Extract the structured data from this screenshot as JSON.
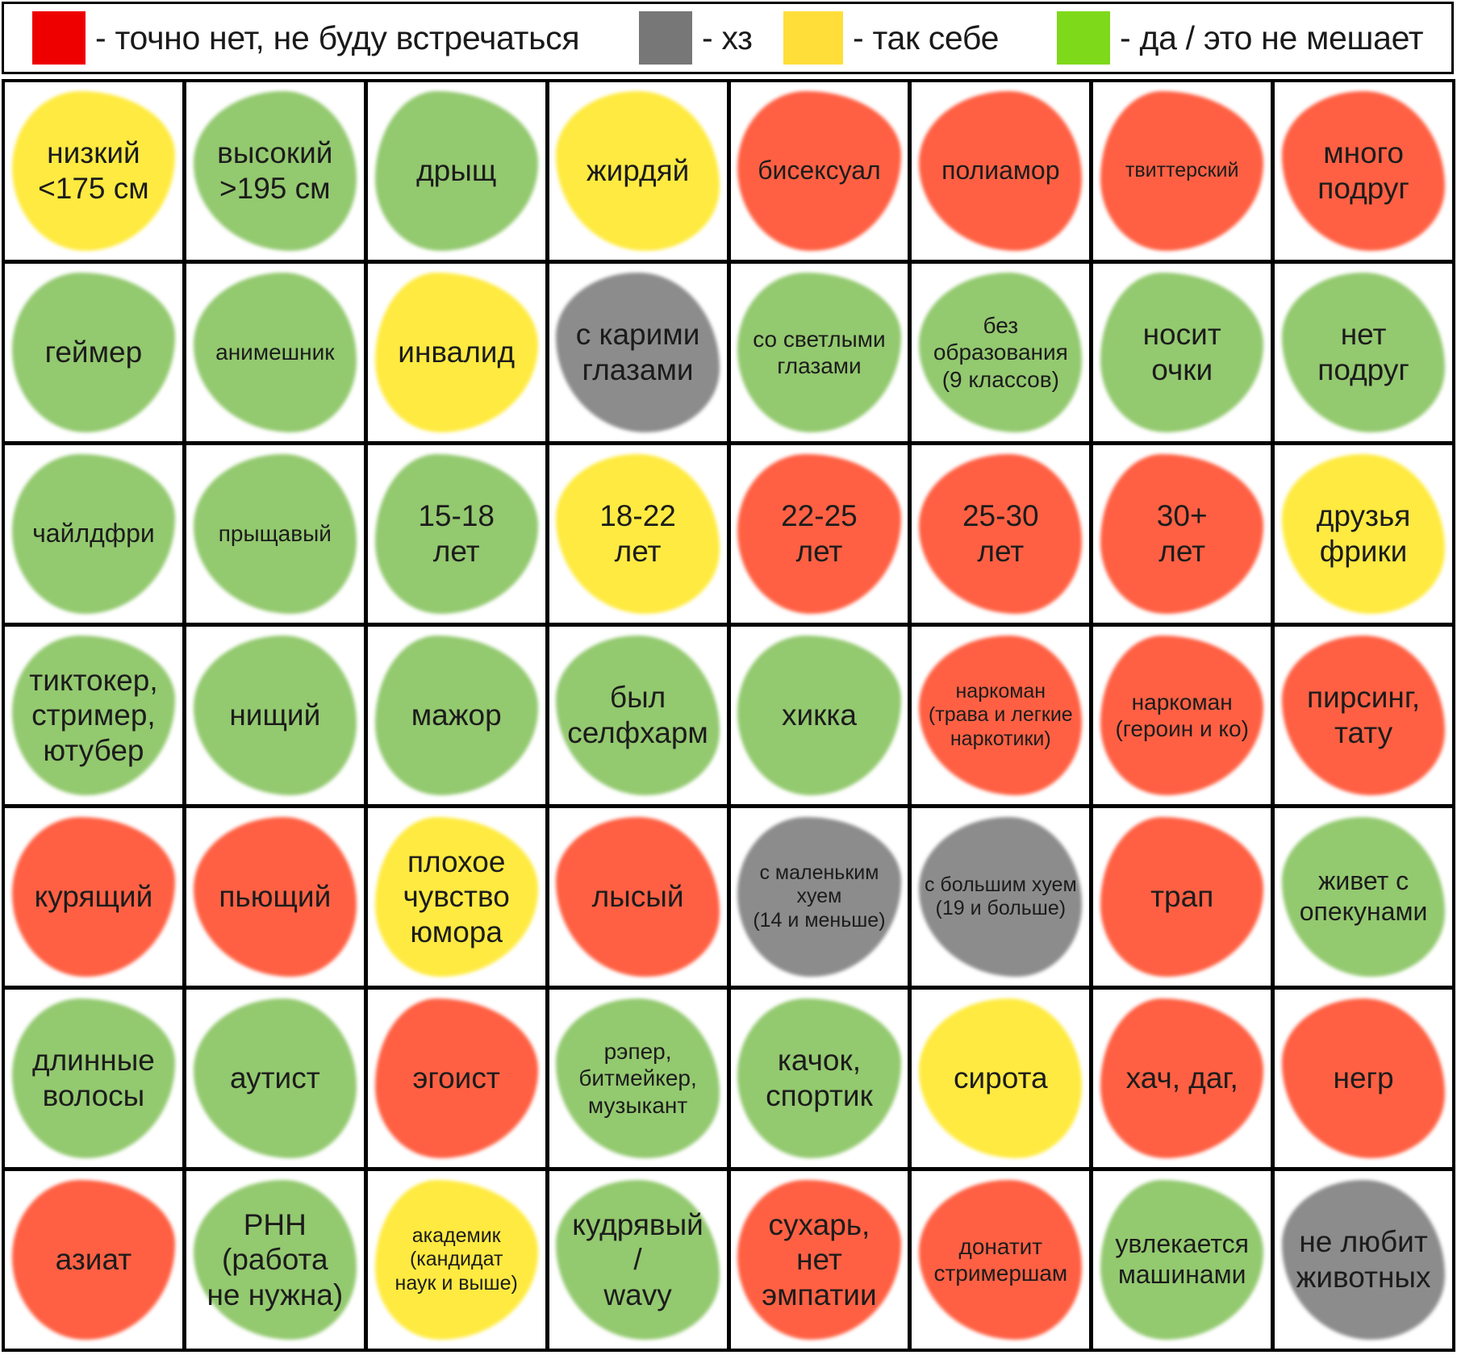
{
  "colors": {
    "red": "#ff5a3c",
    "gray": "#888888",
    "yellow": "#ffea3a",
    "green": "#8fc76a"
  },
  "legend": [
    {
      "color": "#ee0000",
      "label": "-  точно нет, не буду встречаться"
    },
    {
      "color": "#777777",
      "label": "-  хз"
    },
    {
      "color": "#ffde3a",
      "label": "-  так себе"
    },
    {
      "color": "#7ed91a",
      "label": "-  да / это не мешает"
    }
  ],
  "cells": [
    {
      "text": "низкий\n<175 см",
      "color": "yellow",
      "size": "l"
    },
    {
      "text": "высокий\n>195 см",
      "color": "green",
      "size": "l"
    },
    {
      "text": "дрыщ",
      "color": "green",
      "size": "l"
    },
    {
      "text": "жирдяй",
      "color": "yellow",
      "size": "l"
    },
    {
      "text": "бисексуал",
      "color": "red",
      "size": "m"
    },
    {
      "text": "полиамор",
      "color": "red",
      "size": "m"
    },
    {
      "text": "твиттерский",
      "color": "red",
      "size": "xs"
    },
    {
      "text": "много\nподруг",
      "color": "red",
      "size": "l"
    },
    {
      "text": "геймер",
      "color": "green",
      "size": "l"
    },
    {
      "text": "анимешник",
      "color": "green",
      "size": "s"
    },
    {
      "text": "инвалид",
      "color": "yellow",
      "size": "l"
    },
    {
      "text": "с карими\nглазами",
      "color": "gray",
      "size": "l"
    },
    {
      "text": "со светлыми\nглазами",
      "color": "green",
      "size": "s"
    },
    {
      "text": "без\nобразования\n(9 классов)",
      "color": "green",
      "size": "s"
    },
    {
      "text": "носит\nочки",
      "color": "green",
      "size": "l"
    },
    {
      "text": "нет\nподруг",
      "color": "green",
      "size": "l"
    },
    {
      "text": "чайлдфри",
      "color": "green",
      "size": "m"
    },
    {
      "text": "прыщавый",
      "color": "green",
      "size": "s"
    },
    {
      "text": "15-18\nлет",
      "color": "green",
      "size": "l"
    },
    {
      "text": "18-22\nлет",
      "color": "yellow",
      "size": "l"
    },
    {
      "text": "22-25\nлет",
      "color": "red",
      "size": "l"
    },
    {
      "text": "25-30\nлет",
      "color": "red",
      "size": "l"
    },
    {
      "text": "30+\nлет",
      "color": "red",
      "size": "l"
    },
    {
      "text": "друзья\nфрики",
      "color": "yellow",
      "size": "l"
    },
    {
      "text": "тиктокер,\nстример,\nютубер",
      "color": "green",
      "size": "l"
    },
    {
      "text": "нищий",
      "color": "green",
      "size": "l"
    },
    {
      "text": "мажор",
      "color": "green",
      "size": "l"
    },
    {
      "text": "был\nселфхарм",
      "color": "green",
      "size": "l"
    },
    {
      "text": "хикка",
      "color": "green",
      "size": "l"
    },
    {
      "text": "наркоман\n(трава и легкие\nнаркотики)",
      "color": "red",
      "size": "xs"
    },
    {
      "text": "наркоман\n(героин и ко)",
      "color": "red",
      "size": "s"
    },
    {
      "text": "пирсинг,\nтату",
      "color": "red",
      "size": "l"
    },
    {
      "text": "курящий",
      "color": "red",
      "size": "l"
    },
    {
      "text": "пьющий",
      "color": "red",
      "size": "l"
    },
    {
      "text": "плохое\nчувство\nюмора",
      "color": "yellow",
      "size": "l"
    },
    {
      "text": "лысый",
      "color": "red",
      "size": "l"
    },
    {
      "text": "с маленьким\nхуем\n(14 и меньше)",
      "color": "gray",
      "size": "xs"
    },
    {
      "text": "с большим хуем\n(19 и больше)",
      "color": "gray",
      "size": "xs"
    },
    {
      "text": "трап",
      "color": "red",
      "size": "l"
    },
    {
      "text": "живет с\nопекунами",
      "color": "green",
      "size": "m"
    },
    {
      "text": "длинные\nволосы",
      "color": "green",
      "size": "l"
    },
    {
      "text": "аутист",
      "color": "green",
      "size": "l"
    },
    {
      "text": "эгоист",
      "color": "red",
      "size": "l"
    },
    {
      "text": "рэпер,\nбитмейкер,\nмузыкант",
      "color": "green",
      "size": "s"
    },
    {
      "text": "качок,\nспортик",
      "color": "green",
      "size": "l"
    },
    {
      "text": "сирота",
      "color": "yellow",
      "size": "l"
    },
    {
      "text": "хач, даг,",
      "color": "red",
      "size": "l"
    },
    {
      "text": "негр",
      "color": "red",
      "size": "l"
    },
    {
      "text": "азиат",
      "color": "red",
      "size": "l"
    },
    {
      "text": "РНН\n(работа\nне нужна)",
      "color": "green",
      "size": "l"
    },
    {
      "text": "академик\n(кандидат\nнаук и выше)",
      "color": "yellow",
      "size": "xs"
    },
    {
      "text": "кудрявый\n/\nwavy",
      "color": "green",
      "size": "l"
    },
    {
      "text": "сухарь,\nнет\nэмпатии",
      "color": "red",
      "size": "l"
    },
    {
      "text": "донатит\nстримершам",
      "color": "red",
      "size": "s"
    },
    {
      "text": "увлекается\nмашинами",
      "color": "green",
      "size": "m"
    },
    {
      "text": "не любит\nживотных",
      "color": "gray",
      "size": "l"
    }
  ]
}
